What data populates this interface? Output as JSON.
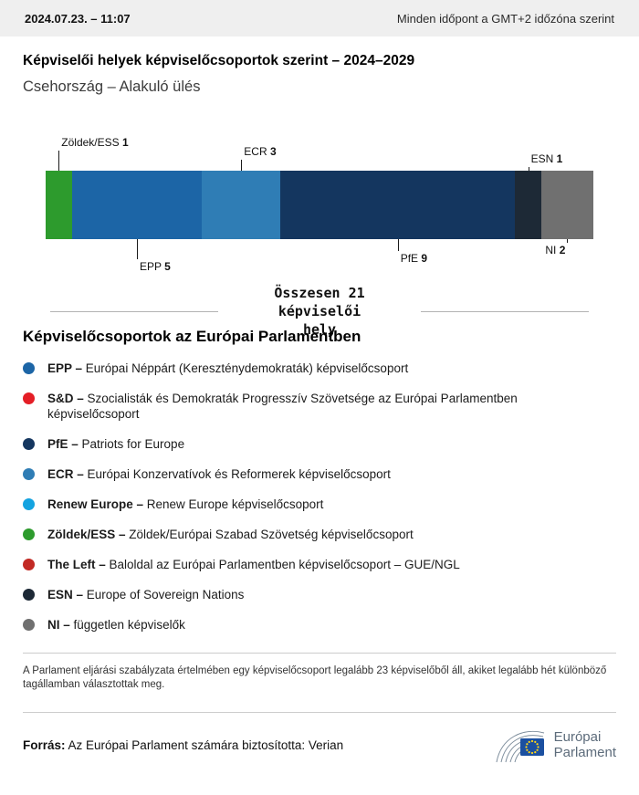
{
  "header": {
    "datetime": "2024.07.23. – 11:07",
    "timezone_note": "Minden időpont a GMT+2 időzóna szerint"
  },
  "page": {
    "title": "Képviselői helyek képviselőcsoportok szerint – 2024–2029",
    "subtitle": "Csehország – Alakuló ülés"
  },
  "chart_data": {
    "type": "bar",
    "variant": "horizontal-stacked-seat-distribution",
    "title": "Képviselői helyek képviselőcsoportok szerint – 2024–2029",
    "total_seats": 21,
    "total_label": "Összesen 21 képviselői hely",
    "categories": [
      "Zöldek/ESS",
      "EPP",
      "ECR",
      "PfE",
      "ESN",
      "NI"
    ],
    "values": [
      1,
      5,
      3,
      9,
      1,
      2
    ],
    "segments": [
      {
        "name": "Zöldek/ESS",
        "seats": 1,
        "color": "#2d9b2d",
        "label_side": "top",
        "label_level": 0,
        "label_align": "left"
      },
      {
        "name": "EPP",
        "seats": 5,
        "color": "#1c65a6",
        "label_side": "bottom",
        "label_level": 0,
        "label_align": "left"
      },
      {
        "name": "ECR",
        "seats": 3,
        "color": "#2f7db5",
        "label_side": "top",
        "label_level": 1,
        "label_align": "left"
      },
      {
        "name": "PfE",
        "seats": 9,
        "color": "#14365f",
        "label_side": "bottom",
        "label_level": 1,
        "label_align": "left"
      },
      {
        "name": "ESN",
        "seats": 1,
        "color": "#1d2936",
        "label_side": "top",
        "label_level": 2,
        "label_align": "left"
      },
      {
        "name": "NI",
        "seats": 2,
        "color": "#707070",
        "label_side": "bottom",
        "label_level": 2,
        "label_align": "right"
      }
    ]
  },
  "legend": {
    "heading": "Képviselőcsoportok az Európai Parlamentben",
    "separator": " – ",
    "items": [
      {
        "name": "EPP",
        "description": "Európai Néppárt (Kereszténydemokraták) képviselőcsoport",
        "color": "#1c65a6"
      },
      {
        "name": "S&D",
        "description": "Szocialisták és Demokraták Progresszív Szövetsége az Európai Parlamentben képviselőcsoport",
        "color": "#e41e26"
      },
      {
        "name": "PfE",
        "description": "Patriots for Europe",
        "color": "#14365f"
      },
      {
        "name": "ECR",
        "description": "Európai Konzervatívok és Reformerek képviselőcsoport",
        "color": "#2f7db5"
      },
      {
        "name": "Renew Europe",
        "description": "Renew Europe képviselőcsoport",
        "color": "#14a3e0"
      },
      {
        "name": "Zöldek/ESS",
        "description": "Zöldek/Európai Szabad Szövetség képviselőcsoport",
        "color": "#2d9b2d"
      },
      {
        "name": "The Left",
        "description": "Baloldal az Európai Parlamentben képviselőcsoport – GUE/NGL",
        "color": "#c22a24"
      },
      {
        "name": "ESN",
        "description": "Europe of Sovereign Nations",
        "color": "#1d2936"
      },
      {
        "name": "NI",
        "description": "független képviselők",
        "color": "#707070"
      }
    ]
  },
  "footnote": "A Parlament eljárási szabályzata értelmében egy képviselőcsoport legalább 23 képviselőből áll, akiket legalább hét különböző tagállamban választottak meg.",
  "footer": {
    "source_label": "Forrás:",
    "source_text": "Az Európai Parlament számára biztosította: Verian",
    "logo": {
      "line1": "Európai",
      "line2": "Parlament"
    }
  }
}
